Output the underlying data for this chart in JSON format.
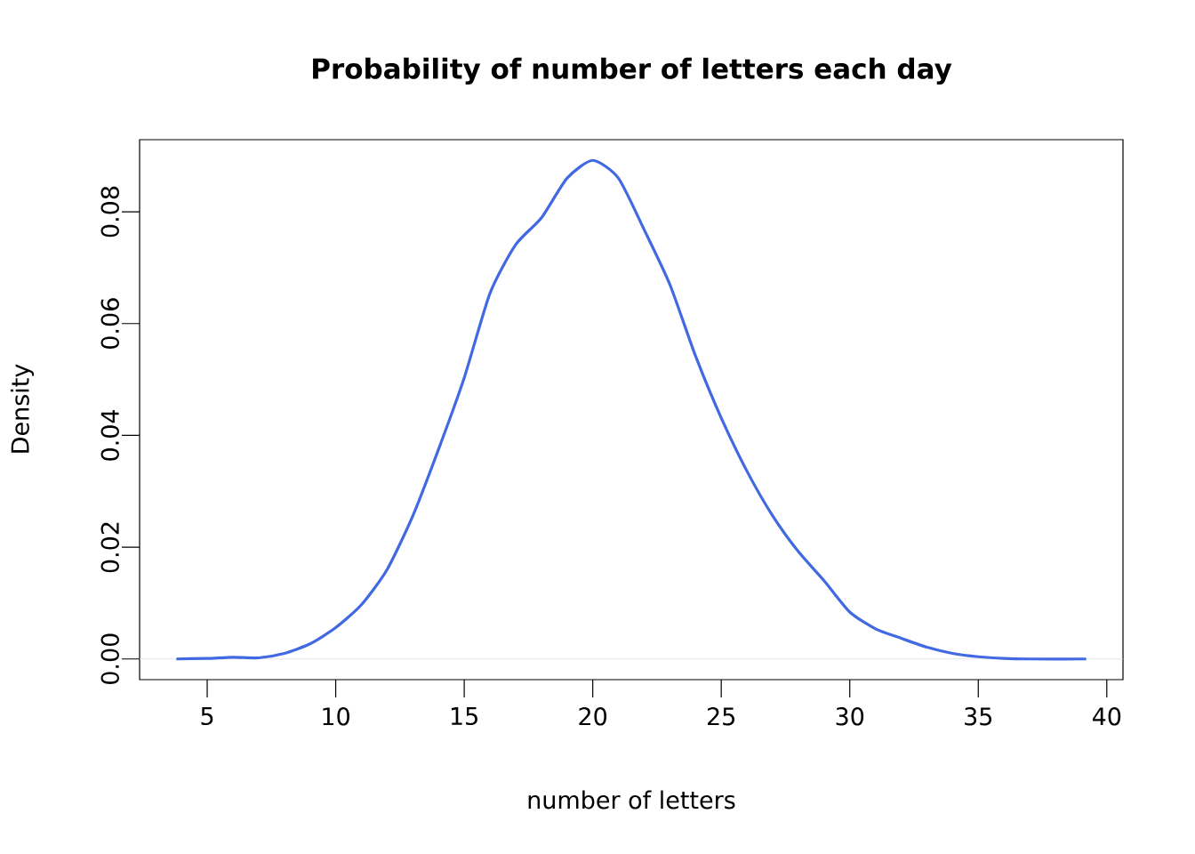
{
  "chart_data": {
    "type": "line",
    "title": "Probability of number of letters each day",
    "xlabel": "number of letters",
    "ylabel": "Density",
    "x": [
      3.8,
      5,
      6,
      7,
      8,
      9,
      10,
      11,
      12,
      13,
      14,
      15,
      16,
      17,
      18,
      19,
      20,
      21,
      22,
      23,
      24,
      25,
      26,
      27,
      28,
      29,
      30,
      31,
      32,
      33,
      34,
      35,
      36,
      37,
      39.2
    ],
    "series": [
      {
        "color": "#4169e1",
        "values": [
          0.0,
          0.0001,
          0.0003,
          0.0002,
          0.001,
          0.0027,
          0.0056,
          0.0097,
          0.016,
          0.0256,
          0.0375,
          0.0503,
          0.0654,
          0.0741,
          0.0789,
          0.086,
          0.0892,
          0.086,
          0.0768,
          0.067,
          0.0542,
          0.0431,
          0.0336,
          0.0256,
          0.0192,
          0.014,
          0.0084,
          0.0054,
          0.0037,
          0.0021,
          0.001,
          0.0004,
          0.0001,
          0.0,
          0.0
        ]
      }
    ],
    "xlim": [
      2.37,
      40.63
    ],
    "ylim": [
      -0.0037,
      0.0929
    ],
    "xticks": [
      5,
      10,
      15,
      20,
      25,
      30,
      35,
      40
    ],
    "yticks": [
      {
        "value": 0,
        "label": "0.00"
      },
      {
        "value": 0.02,
        "label": "0.02"
      },
      {
        "value": 0.04,
        "label": "0.04"
      },
      {
        "value": 0.06,
        "label": "0.06"
      },
      {
        "value": 0.08,
        "label": "0.08"
      }
    ],
    "ref_lines": [
      {
        "axis": "y",
        "value": 0,
        "color": "#e0e0e0"
      }
    ],
    "grid": false,
    "marker": "none",
    "line_style": "solid"
  }
}
